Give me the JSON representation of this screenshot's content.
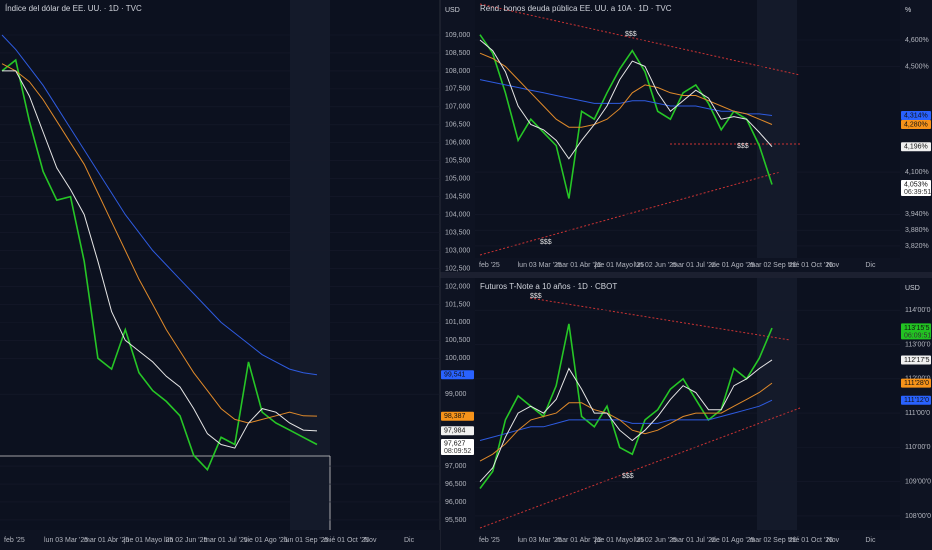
{
  "chart_data": [
    {
      "type": "line",
      "title": "Índice del dólar de EE. UU. · 1D · TVC",
      "unit_header": "USD",
      "ylim": [
        95.22,
        109.974
      ],
      "yticks": [
        {
          "value": 109,
          "label": "109,000"
        },
        {
          "value": 108.5,
          "label": "108,500"
        },
        {
          "value": 108,
          "label": "108,000"
        },
        {
          "value": 107.5,
          "label": "107,500"
        },
        {
          "value": 107,
          "label": "107,000"
        },
        {
          "value": 106.5,
          "label": "106,500"
        },
        {
          "value": 106,
          "label": "106,000"
        },
        {
          "value": 105.5,
          "label": "105,500"
        },
        {
          "value": 105,
          "label": "105,000"
        },
        {
          "value": 104.5,
          "label": "104,500"
        },
        {
          "value": 104,
          "label": "104,000"
        },
        {
          "value": 103.5,
          "label": "103,500"
        },
        {
          "value": 103,
          "label": "103,000"
        },
        {
          "value": 102.5,
          "label": "102,500"
        },
        {
          "value": 102,
          "label": "102,000"
        },
        {
          "value": 101.5,
          "label": "101,500"
        },
        {
          "value": 101,
          "label": "101,000"
        },
        {
          "value": 100.5,
          "label": "100,500"
        },
        {
          "value": 100,
          "label": "100,000"
        },
        {
          "value": 99,
          "label": "99,000"
        },
        {
          "value": 97,
          "label": "97,000"
        },
        {
          "value": 96.5,
          "label": "96,500"
        },
        {
          "value": 96,
          "label": "96,000"
        },
        {
          "value": 95.5,
          "label": "95,500"
        }
      ],
      "x_labels": [
        "feb '25",
        "lun 03 Mar '25",
        "mar 01 Abr '25",
        "jue 01 Mayo '25",
        "lun 02 Jun '25",
        "mar 01 Jul '25",
        "vie 01 Ago '25",
        "lun 01 Sep '25",
        "mié 01 Oct '25",
        "Nov",
        "Dic"
      ],
      "series": [
        {
          "color": "#26c626",
          "values": [
            108.0,
            108.3,
            106.6,
            105.2,
            104.4,
            104.5,
            102.7,
            100.0,
            99.7,
            100.8,
            99.6,
            99.1,
            98.8,
            98.4,
            97.3,
            96.9,
            97.8,
            97.6,
            99.9,
            98.5,
            98.2,
            98.0,
            97.8,
            97.6
          ]
        },
        {
          "color": "#2e5be0",
          "values": [
            109.0,
            108.6,
            108.1,
            107.6,
            107.0,
            106.4,
            105.8,
            105.2,
            104.6,
            104.0,
            103.5,
            103.0,
            102.6,
            102.2,
            101.8,
            101.4,
            101.0,
            100.7,
            100.4,
            100.1,
            99.9,
            99.7,
            99.6,
            99.54
          ]
        },
        {
          "color": "#e08a2a",
          "values": [
            108.2,
            108.0,
            107.7,
            107.2,
            106.6,
            106.0,
            105.4,
            104.6,
            103.8,
            103.0,
            102.2,
            101.5,
            100.8,
            100.2,
            99.6,
            99.1,
            98.6,
            98.3,
            98.2,
            98.3,
            98.4,
            98.5,
            98.4,
            98.39
          ]
        },
        {
          "color": "#e6e6e6",
          "values": [
            108.0,
            108.0,
            107.3,
            106.3,
            105.3,
            104.7,
            104.0,
            102.7,
            101.3,
            100.5,
            100.2,
            99.9,
            99.5,
            99.2,
            98.6,
            97.9,
            97.6,
            97.5,
            98.2,
            98.6,
            98.5,
            98.2,
            98.0,
            97.98
          ]
        }
      ],
      "price_tags": [
        {
          "value": 99.541,
          "label": "99,541",
          "color": "#2962ff"
        },
        {
          "value": 98.387,
          "label": "98,387",
          "color": "#f7931a"
        },
        {
          "value": 97.984,
          "label": "97,984",
          "color": "#f0f0f0"
        },
        {
          "value": 97.627,
          "label": "97,627",
          "color": "#ffffff",
          "countdown": "08:09:52"
        }
      ],
      "annotations": []
    },
    {
      "type": "line",
      "title": "Rend. bonos deuda pública EE. UU. a 10A · 1D · TVC",
      "unit_header": "%",
      "ylim": [
        3.7745,
        4.7515
      ],
      "yticks": [
        {
          "value": 4.6,
          "label": "4,600%"
        },
        {
          "value": 4.5,
          "label": "4,500%"
        },
        {
          "value": 4.1,
          "label": "4,100%"
        },
        {
          "value": 3.94,
          "label": "3,940%"
        },
        {
          "value": 3.88,
          "label": "3,880%"
        },
        {
          "value": 3.82,
          "label": "3,820%"
        }
      ],
      "x_labels": [
        "feb '25",
        "lun 03 Mar '25",
        "mar 01 Abr '25",
        "jue 01 Mayo '25",
        "lun 02 Jun '25",
        "mar 01 Jul '25",
        "vie 01 Ago '25",
        "mar 02 Sep '25",
        "mié 01 Oct '25",
        "Nov",
        "Dic"
      ],
      "series": [
        {
          "color": "#26c626",
          "values": [
            4.62,
            4.55,
            4.4,
            4.22,
            4.3,
            4.25,
            4.2,
            4.0,
            4.33,
            4.3,
            4.4,
            4.49,
            4.56,
            4.48,
            4.33,
            4.3,
            4.4,
            4.43,
            4.36,
            4.26,
            4.33,
            4.3,
            4.2,
            4.053
          ]
        },
        {
          "color": "#2e5be0",
          "values": [
            4.45,
            4.44,
            4.43,
            4.42,
            4.41,
            4.4,
            4.39,
            4.38,
            4.37,
            4.36,
            4.36,
            4.36,
            4.37,
            4.37,
            4.36,
            4.35,
            4.35,
            4.35,
            4.34,
            4.33,
            4.33,
            4.32,
            4.32,
            4.314
          ]
        },
        {
          "color": "#e08a2a",
          "values": [
            4.55,
            4.53,
            4.5,
            4.45,
            4.4,
            4.35,
            4.3,
            4.27,
            4.27,
            4.28,
            4.3,
            4.34,
            4.4,
            4.43,
            4.42,
            4.4,
            4.39,
            4.39,
            4.37,
            4.35,
            4.33,
            4.32,
            4.3,
            4.28
          ]
        },
        {
          "color": "#e6e6e6",
          "values": [
            4.6,
            4.56,
            4.48,
            4.35,
            4.28,
            4.26,
            4.22,
            4.15,
            4.22,
            4.28,
            4.35,
            4.45,
            4.52,
            4.5,
            4.4,
            4.33,
            4.37,
            4.41,
            4.38,
            4.3,
            4.31,
            4.3,
            4.25,
            4.196
          ]
        }
      ],
      "price_tags": [
        {
          "value": 4.314,
          "label": "4,314%",
          "color": "#2962ff"
        },
        {
          "value": 4.28,
          "label": "4,280%",
          "color": "#f7931a"
        },
        {
          "value": 4.196,
          "label": "4,196%",
          "color": "#f0f0f0"
        },
        {
          "value": 4.053,
          "label": "4,053%",
          "color": "#ffffff",
          "countdown": "06:39:51"
        }
      ],
      "annotations": [
        "$$$",
        "$$$",
        "$$$"
      ]
    },
    {
      "type": "line",
      "title": "Futuros T-Note a 10 años · 1D · CBOT",
      "unit_header": "USD",
      "ylim": [
        107.59,
        114.94
      ],
      "yticks": [
        {
          "value": 114,
          "label": "114'00'0"
        },
        {
          "value": 113,
          "label": "113'00'0"
        },
        {
          "value": 112,
          "label": "112'00'0"
        },
        {
          "value": 111,
          "label": "111'00'0"
        },
        {
          "value": 110,
          "label": "110'00'0"
        },
        {
          "value": 109,
          "label": "109'00'0"
        },
        {
          "value": 108,
          "label": "108'00'0"
        }
      ],
      "x_labels": [
        "feb '25",
        "lun 03 Mar '25",
        "mar 01 Abr '25",
        "jue 01 Mayo '25",
        "lun 02 Jun '25",
        "mar 01 Jul '25",
        "vie 01 Ago '25",
        "mar 02 Sep '25",
        "mié 01 Oct '25",
        "Nov",
        "Dic"
      ],
      "series": [
        {
          "color": "#26c626",
          "values": [
            108.8,
            109.3,
            110.8,
            111.5,
            111.2,
            110.9,
            111.8,
            113.6,
            110.9,
            110.6,
            111.2,
            110.0,
            109.8,
            110.8,
            111.1,
            111.7,
            112.0,
            111.4,
            110.8,
            111.1,
            112.3,
            112.0,
            112.6,
            113.48
          ]
        },
        {
          "color": "#2e5be0",
          "values": [
            110.2,
            110.3,
            110.4,
            110.5,
            110.6,
            110.6,
            110.7,
            110.8,
            110.8,
            110.8,
            110.8,
            110.8,
            110.7,
            110.7,
            110.7,
            110.8,
            110.8,
            110.8,
            110.8,
            110.9,
            111.0,
            111.1,
            111.2,
            111.375
          ]
        },
        {
          "color": "#e08a2a",
          "values": [
            109.6,
            109.8,
            110.1,
            110.5,
            110.8,
            110.9,
            111.0,
            111.3,
            111.3,
            111.1,
            111.0,
            110.8,
            110.5,
            110.4,
            110.5,
            110.7,
            110.9,
            111.0,
            111.0,
            111.0,
            111.2,
            111.4,
            111.6,
            111.875
          ]
        },
        {
          "color": "#e6e6e6",
          "values": [
            109.0,
            109.4,
            110.3,
            111.0,
            111.2,
            111.0,
            111.4,
            112.3,
            111.7,
            111.0,
            111.0,
            110.5,
            110.2,
            110.5,
            110.9,
            111.4,
            111.8,
            111.6,
            111.1,
            111.1,
            111.8,
            112.0,
            112.3,
            112.55
          ]
        }
      ],
      "price_tags": [
        {
          "value": 113.484,
          "label": "113'15'5",
          "color": "#22c322",
          "countdown": "06:09:51"
        },
        {
          "value": 112.547,
          "label": "112'17'5",
          "color": "#f0f0f0"
        },
        {
          "value": 111.875,
          "label": "111'28'0",
          "color": "#f7931a"
        },
        {
          "value": 111.375,
          "label": "111'12'0",
          "color": "#2962ff"
        }
      ],
      "annotations": [
        "$$$",
        "$$$"
      ]
    }
  ]
}
